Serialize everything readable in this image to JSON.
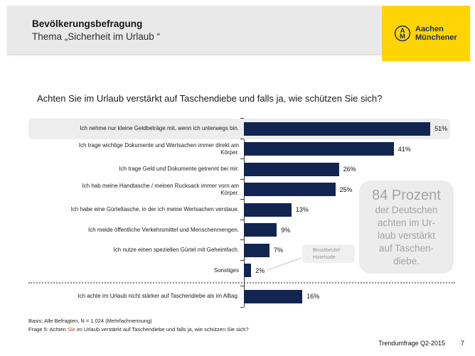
{
  "header": {
    "title": "Bevölkerungsbefragung",
    "subtitle": "Thema „Sicherheit im Urlaub “",
    "logo": {
      "icon": "aachen-muenchener-monogram-icon",
      "line1": "Aachen",
      "line2": "Münchener"
    }
  },
  "question": "Achten Sie im Urlaub verstärkt auf Taschendiebe und falls ja, wie schützen Sie sich?",
  "chart_data": {
    "type": "bar",
    "orientation": "horizontal",
    "unit": "%",
    "title": "Achten Sie im Urlaub verstärkt auf Taschendiebe und falls ja, wie schützen Sie sich?",
    "categories": [
      "Ich nehme nur kleine Geldbeträge mit, wenn ich unterwegs bin.",
      "Ich trage wichtige Dokumente und Wertsachen immer direkt am\nKörper.",
      "Ich trage Geld und Dokumente getrennt bei mir.",
      "Ich hab meine Handtasche / meinen Rucksack immer vorn am\nKörper.",
      "Ich habe eine Gürteltasche, in der ich meine Wertsachen verstaue.",
      "Ich meide öffentliche Verkehrsmittel und Menschenmengen.",
      "Ich nutze einen speziellen Gürtel mit Geheimfach.",
      "Sonstiges",
      "Ich achte im Urlaub nicht stärker auf Taschendiebe als im Alltag."
    ],
    "values": [
      51,
      41,
      26,
      25,
      13,
      9,
      7,
      2,
      16
    ],
    "value_labels": [
      "51%",
      "41%",
      "26%",
      "25%",
      "13%",
      "9%",
      "7%",
      "2%",
      "16%"
    ],
    "highlighted_index": 0,
    "separator_after_index": 7,
    "xlim": [
      0,
      62
    ],
    "legend": false,
    "grid": false,
    "bar_color": "#122450"
  },
  "callout": {
    "headline": "84 Prozent",
    "body": "der Deutschen\nachten im Ur-\nlaub verstärkt\nauf Taschen-\ndiebe."
  },
  "annotation": {
    "items": [
      "Brustbeutel",
      "Hotelsafe"
    ]
  },
  "footer": {
    "basis": "Basis: Alle Befragten, N = 1.024 (Mehrfachnennung)",
    "frage_prefix": "Frage 5: Achten ",
    "frage_word": "Sie",
    "frage_suffix": " im Urlaub verstärkt auf Taschendiebe und falls ja, wie schützen Sie sich?",
    "source": "Trendumfrage Q2-2015",
    "page": "7"
  },
  "colors": {
    "accent_yellow": "#ffd405",
    "bar_navy": "#122450",
    "logo_navy": "#1d2d5c",
    "callout_bg": "#ececec",
    "callout_text": "#a3a3a3",
    "highlight_row_bg": "#ededed",
    "frage_word_color": "#9c4a38"
  }
}
